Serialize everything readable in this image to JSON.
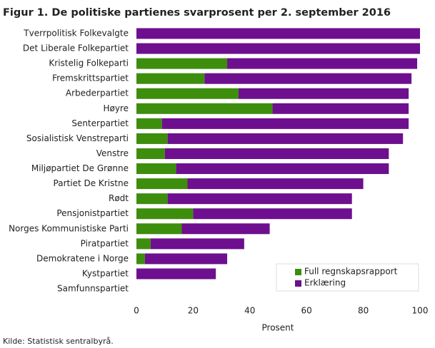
{
  "chart_data": {
    "type": "stacked-barh",
    "title": "Figur 1. De politiske partienes svarprosent per 2. september 2016",
    "xlabel": "Prosent",
    "source": "Kilde: Statistisk sentralbyrå.",
    "categories": [
      "Tverrpolitisk Folkevalgte",
      "Det Liberale Folkepartiet",
      "Kristelig Folkeparti",
      "Fremskrittspartiet",
      "Arbederpartiet",
      "Høyre",
      "Senterpartiet",
      "Sosialistisk Venstreparti",
      "Venstre",
      "Miljøpartiet De Grønne",
      "Partiet De Kristne",
      "Rødt",
      "Pensjonistpartiet",
      "Norges Kommunistiske Parti",
      "Piratpartiet",
      "Demokratene i Norge",
      "Kystpartiet",
      "Samfunnspartiet"
    ],
    "series": [
      {
        "name": "Full regnskapsrapport",
        "color": "#3d8e0c",
        "values": [
          0,
          0,
          32,
          24,
          36,
          48,
          9,
          11,
          10,
          14,
          18,
          11,
          20,
          16,
          5,
          3,
          0,
          0
        ]
      },
      {
        "name": "Erklæring",
        "color": "#6d0f8f",
        "values": [
          100,
          100,
          67,
          73,
          60,
          48,
          87,
          83,
          79,
          75,
          62,
          65,
          56,
          31,
          33,
          29,
          28,
          0
        ]
      }
    ],
    "xlim": [
      0,
      100
    ],
    "xticks": [
      0,
      20,
      40,
      60,
      80,
      100
    ],
    "legend": "lower right"
  }
}
